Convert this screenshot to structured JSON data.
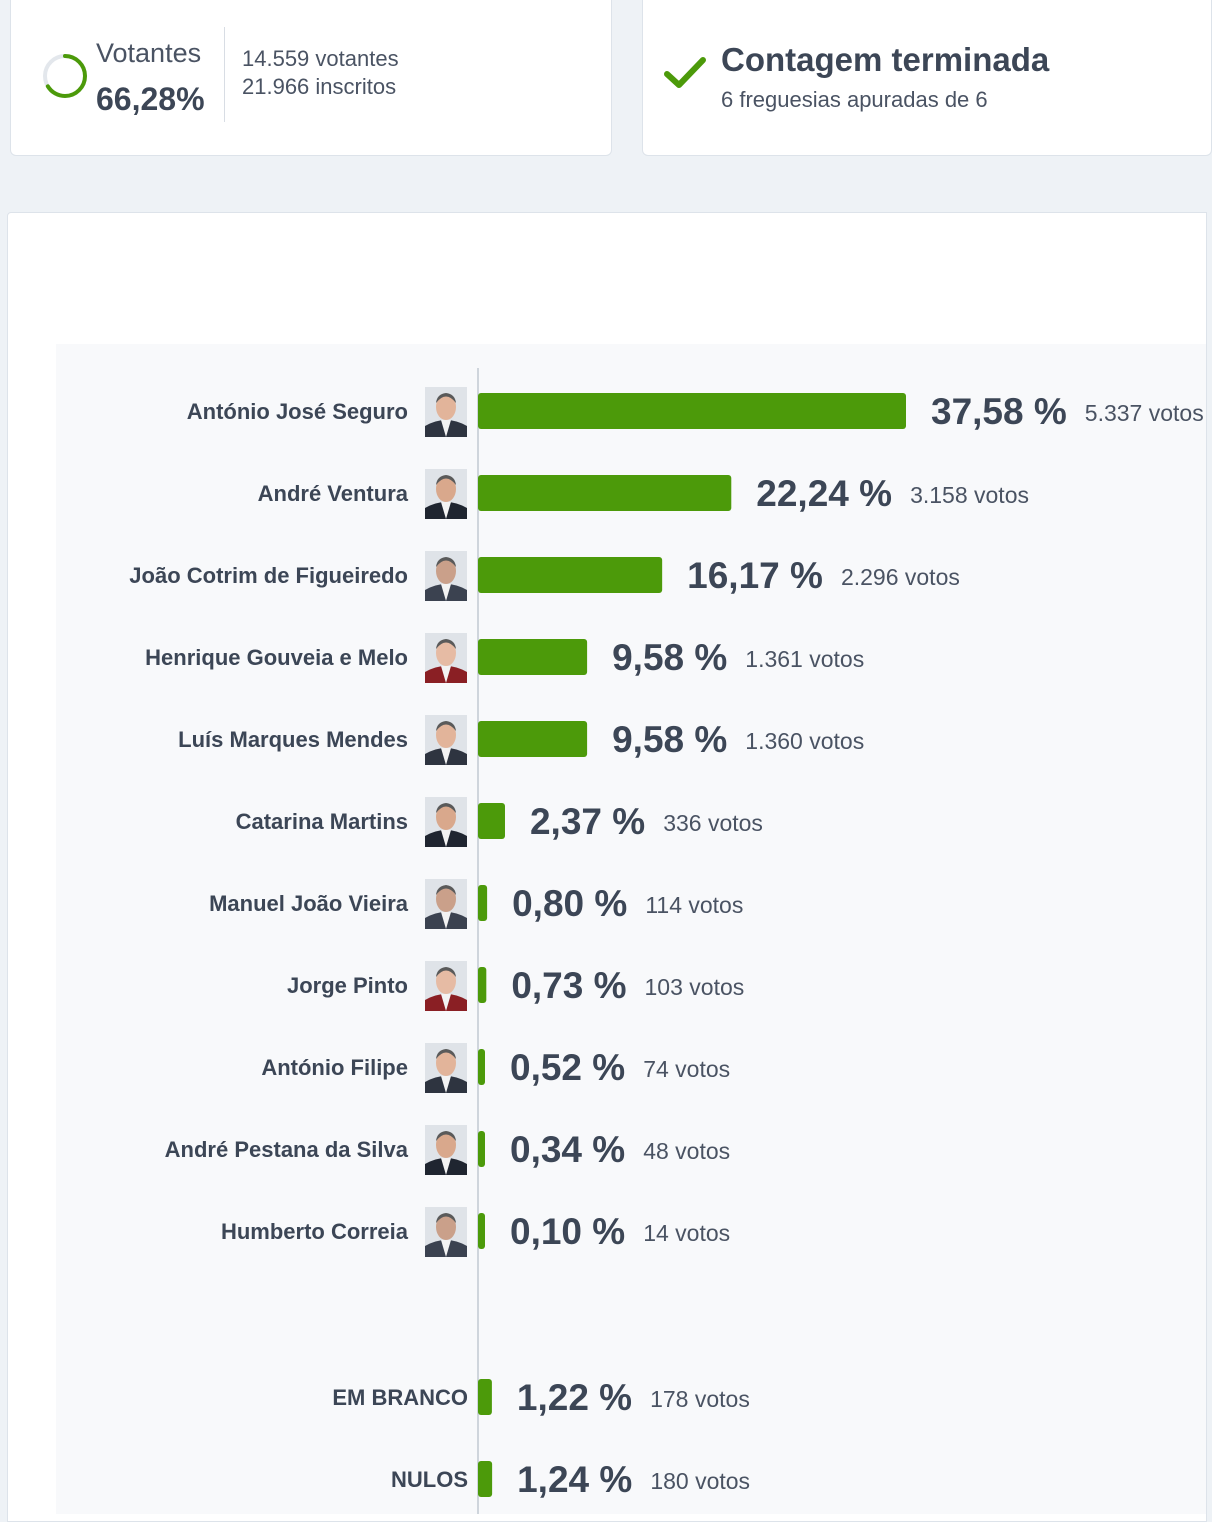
{
  "turnout": {
    "label": "Votantes",
    "percent": "66,28%",
    "percent_value": 66.28,
    "voters": "14.559 votantes",
    "registered": "21.966 inscritos"
  },
  "status": {
    "title": "Contagem terminada",
    "subtitle": "6 freguesias apuradas de 6"
  },
  "colors": {
    "bar": "#4c9a0a",
    "text": "#3c4656",
    "ring_track": "#e3e7ec"
  },
  "chart_data": {
    "type": "bar",
    "orientation": "horizontal",
    "xlim": [
      0,
      37.58
    ],
    "candidates": [
      {
        "name": "António José Seguro",
        "value": 37.58,
        "percent_label": "37,58 %",
        "votes_label": "5.337 votos",
        "icon": "portrait-icon"
      },
      {
        "name": "André Ventura",
        "value": 22.24,
        "percent_label": "22,24 %",
        "votes_label": "3.158 votos",
        "icon": "portrait-icon"
      },
      {
        "name": "João Cotrim de Figueiredo",
        "value": 16.17,
        "percent_label": "16,17 %",
        "votes_label": "2.296 votos",
        "icon": "portrait-icon"
      },
      {
        "name": "Henrique Gouveia e Melo",
        "value": 9.58,
        "percent_label": "9,58 %",
        "votes_label": "1.361 votos",
        "icon": "portrait-icon"
      },
      {
        "name": "Luís Marques Mendes",
        "value": 9.58,
        "percent_label": "9,58 %",
        "votes_label": "1.360 votos",
        "icon": "portrait-icon"
      },
      {
        "name": "Catarina Martins",
        "value": 2.37,
        "percent_label": "2,37 %",
        "votes_label": "336 votos",
        "icon": "portrait-icon"
      },
      {
        "name": "Manuel João Vieira",
        "value": 0.8,
        "percent_label": "0,80 %",
        "votes_label": "114 votos",
        "icon": "portrait-icon"
      },
      {
        "name": "Jorge Pinto",
        "value": 0.73,
        "percent_label": "0,73 %",
        "votes_label": "103 votos",
        "icon": "portrait-icon"
      },
      {
        "name": "António Filipe",
        "value": 0.52,
        "percent_label": "0,52 %",
        "votes_label": "74 votos",
        "icon": "portrait-icon"
      },
      {
        "name": "André Pestana da Silva",
        "value": 0.34,
        "percent_label": "0,34 %",
        "votes_label": "48 votos",
        "icon": "portrait-icon"
      },
      {
        "name": "Humberto Correia",
        "value": 0.1,
        "percent_label": "0,10 %",
        "votes_label": "14 votos",
        "icon": "portrait-icon"
      }
    ],
    "others": [
      {
        "name": "EM BRANCO",
        "value": 1.22,
        "percent_label": "1,22 %",
        "votes_label": "178 votos"
      },
      {
        "name": "NULOS",
        "value": 1.24,
        "percent_label": "1,24 %",
        "votes_label": "180 votos"
      }
    ]
  }
}
